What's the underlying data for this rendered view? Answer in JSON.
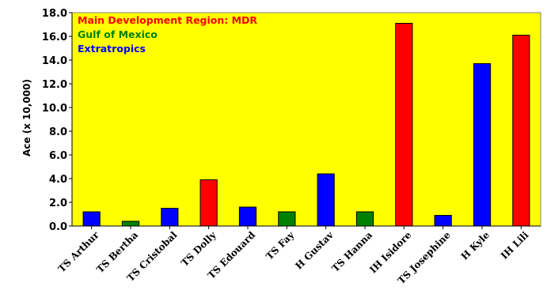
{
  "chart_data": {
    "type": "bar",
    "ylabel": "Ace (x 10,000)",
    "ylim": [
      0,
      18
    ],
    "yticks": [
      "0.0",
      "2.0",
      "4.0",
      "6.0",
      "8.0",
      "10.0",
      "12.0",
      "14.0",
      "16.0",
      "18.0"
    ],
    "categories": [
      "TS Arthur",
      "TS Bertha",
      "TS Cristobal",
      "TS Dolly",
      "TS Edouard",
      "TS Fay",
      "H Gustav",
      "TS Hanna",
      "IH Isidore",
      "TS Josephine",
      "H Kyle",
      "IH Lili"
    ],
    "values": [
      1.2,
      0.4,
      1.5,
      3.9,
      1.6,
      1.2,
      4.4,
      1.2,
      17.1,
      0.9,
      13.7,
      16.1
    ],
    "region": [
      "Extratropics",
      "Gulf of Mexico",
      "Extratropics",
      "Main Development Region: MDR",
      "Extratropics",
      "Gulf of Mexico",
      "Extratropics",
      "Gulf of Mexico",
      "Main Development Region: MDR",
      "Extratropics",
      "Extratropics",
      "Main Development Region: MDR"
    ],
    "legend": [
      {
        "name": "Main Development Region: MDR",
        "color": "#ff0000"
      },
      {
        "name": "Gulf of Mexico",
        "color": "#008000"
      },
      {
        "name": "Extratropics",
        "color": "#0000ff"
      }
    ],
    "legend_position": "top-left",
    "plot_background": "#ffff00",
    "grid": false
  }
}
